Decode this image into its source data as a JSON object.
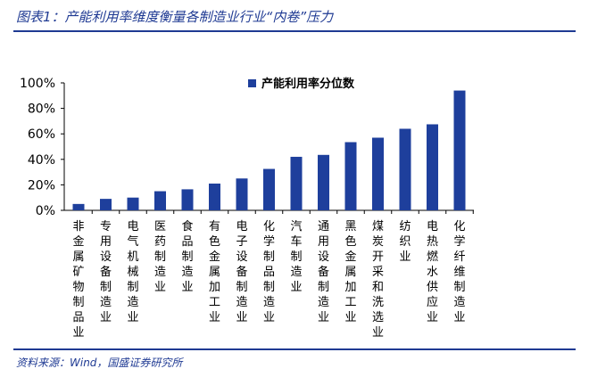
{
  "figure": {
    "title": "图表1：产能利用率维度衡量各制造业行业“内卷”压力",
    "source": "资料来源：Wind，国盛证券研究所"
  },
  "colors": {
    "accent": "#1f3a93",
    "bar": "#1e3f9c"
  },
  "chart_data": {
    "type": "bar",
    "categories": [
      "非金属矿物制品业",
      "专用设备制造业",
      "电气机械制造业",
      "医药制造业",
      "食品制造业",
      "有色金属加工业",
      "电子设备制造业",
      "化学制品制造业",
      "汽车制造业",
      "通用设备制造业",
      "黑色金属加工业",
      "煤炭开采和洗选业",
      "纺织业",
      "电热燃水供应业",
      "化学纤维制造业"
    ],
    "series": [
      {
        "name": "产能利用率分位数",
        "values": [
          5,
          9,
          10,
          15,
          16.5,
          21,
          25,
          32.5,
          42,
          43.5,
          53.5,
          57,
          64,
          67.5,
          94
        ]
      }
    ],
    "ylim": [
      0,
      100
    ],
    "yticks": [
      0,
      20,
      40,
      60,
      80,
      100
    ],
    "ytick_labels": [
      "0%",
      "20%",
      "40%",
      "60%",
      "80%",
      "100%"
    ],
    "legend_position": "top-center",
    "grid": false
  }
}
